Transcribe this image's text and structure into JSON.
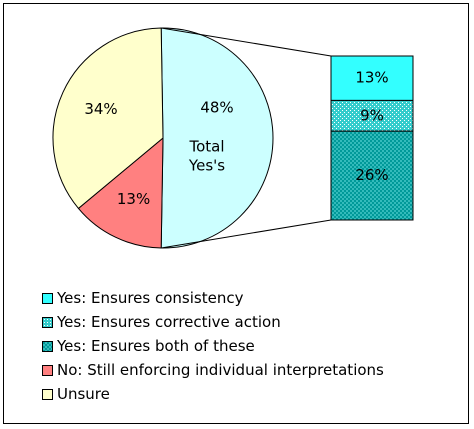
{
  "chart_data": {
    "type": "pie",
    "title": "",
    "slices": [
      {
        "label": "Total Yes's",
        "value": 48,
        "display": "48%",
        "color": "#CCFFFF"
      },
      {
        "label": "No:  Still enforcing individual interpretations",
        "value": 13,
        "display": "13%",
        "color": "#FF8080"
      },
      {
        "label": "Unsure",
        "value": 34,
        "display": "34%",
        "color": "#FFFFCC"
      }
    ],
    "center_label": [
      "Total",
      "Yes's"
    ],
    "breakdown": {
      "of_slice": "Total Yes's",
      "type": "stacked-bar",
      "segments": [
        {
          "label": "Yes:  Ensures consistency",
          "value": 13,
          "display": "13%",
          "color": "#33FFFF",
          "pattern": "none"
        },
        {
          "label": "Yes:  Ensures corrective action",
          "value": 9,
          "display": "9%",
          "color": "#33CCCC",
          "pattern": "dots"
        },
        {
          "label": "Yes:  Ensures both of these",
          "value": 26,
          "display": "26%",
          "color": "#009999",
          "pattern": "checker"
        }
      ]
    },
    "legend": {
      "position": "bottom-left",
      "entries": [
        {
          "label": "Yes:  Ensures consistency",
          "color": "#33FFFF",
          "pattern": "none"
        },
        {
          "label": "Yes:  Ensures corrective action",
          "color": "#33CCCC",
          "pattern": "dots"
        },
        {
          "label": "Yes:  Ensures both of these",
          "color": "#009999",
          "pattern": "checker"
        },
        {
          "label": "No:  Still enforcing individual interpretations",
          "color": "#FF8080",
          "pattern": "none"
        },
        {
          "label": "Unsure",
          "color": "#FFFFCC",
          "pattern": "none"
        }
      ]
    }
  }
}
